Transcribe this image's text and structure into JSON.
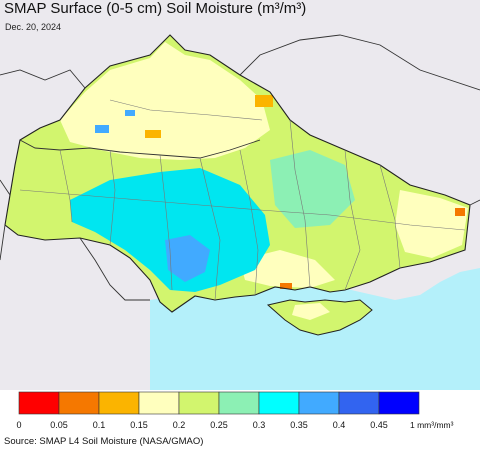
{
  "title": "SMAP Surface (0-5 cm) Soil Moisture (m³/m³)",
  "date": "Dec. 20, 2024",
  "source": "Source: SMAP L4 Soil Moisture (NASA/GMAO)",
  "legend": {
    "colors": [
      "#ff0000",
      "#f57800",
      "#fbb400",
      "#ffffbe",
      "#d2f56e",
      "#8cf0b4",
      "#00ffff",
      "#41aaff",
      "#3264f0",
      "#0000ff"
    ],
    "ticks": [
      "0",
      "0.05",
      "0.1",
      "0.15",
      "0.2",
      "0.25",
      "0.3",
      "0.35",
      "0.4",
      "0.45"
    ],
    "unit": "1 mm³/mm³"
  },
  "map_colors": {
    "background": "#ebe9ee",
    "sea": "#b4f0fa",
    "land": "#d2f56e",
    "wet": "#00e6f0",
    "dry": "#ffffbe",
    "border": "#333333"
  }
}
